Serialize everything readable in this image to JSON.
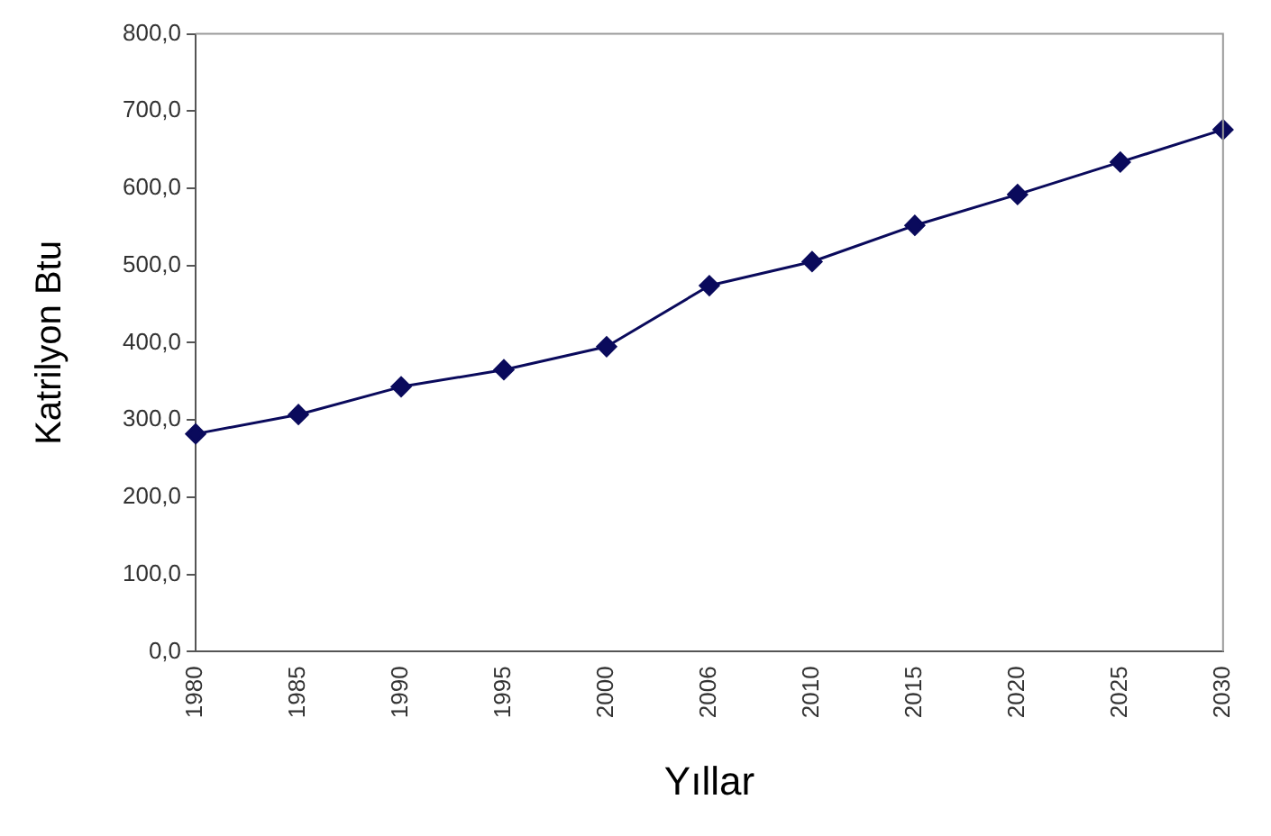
{
  "chart_data": {
    "type": "line",
    "xlabel": "Yıllar",
    "ylabel": "Katrilyon Btu",
    "categories": [
      "1980",
      "1985",
      "1990",
      "1995",
      "2000",
      "2006",
      "2010",
      "2015",
      "2020",
      "2025",
      "2030"
    ],
    "series": [
      {
        "color": "#0a0a5c",
        "values": [
          282,
          307,
          343,
          365,
          395,
          474,
          505,
          552,
          592,
          634,
          676
        ]
      }
    ],
    "ylim": [
      0,
      800
    ],
    "yticks": [
      {
        "value": 0,
        "label": "0,0"
      },
      {
        "value": 100,
        "label": "100,0"
      },
      {
        "value": 200,
        "label": "200,0"
      },
      {
        "value": 300,
        "label": "300,0"
      },
      {
        "value": 400,
        "label": "400,0"
      },
      {
        "value": 500,
        "label": "500,0"
      },
      {
        "value": 600,
        "label": "600,0"
      },
      {
        "value": 700,
        "label": "700,0"
      },
      {
        "value": 800,
        "label": "800,0"
      }
    ],
    "grid": false,
    "legend": false,
    "marker": "diamond",
    "line_style": "solid"
  }
}
